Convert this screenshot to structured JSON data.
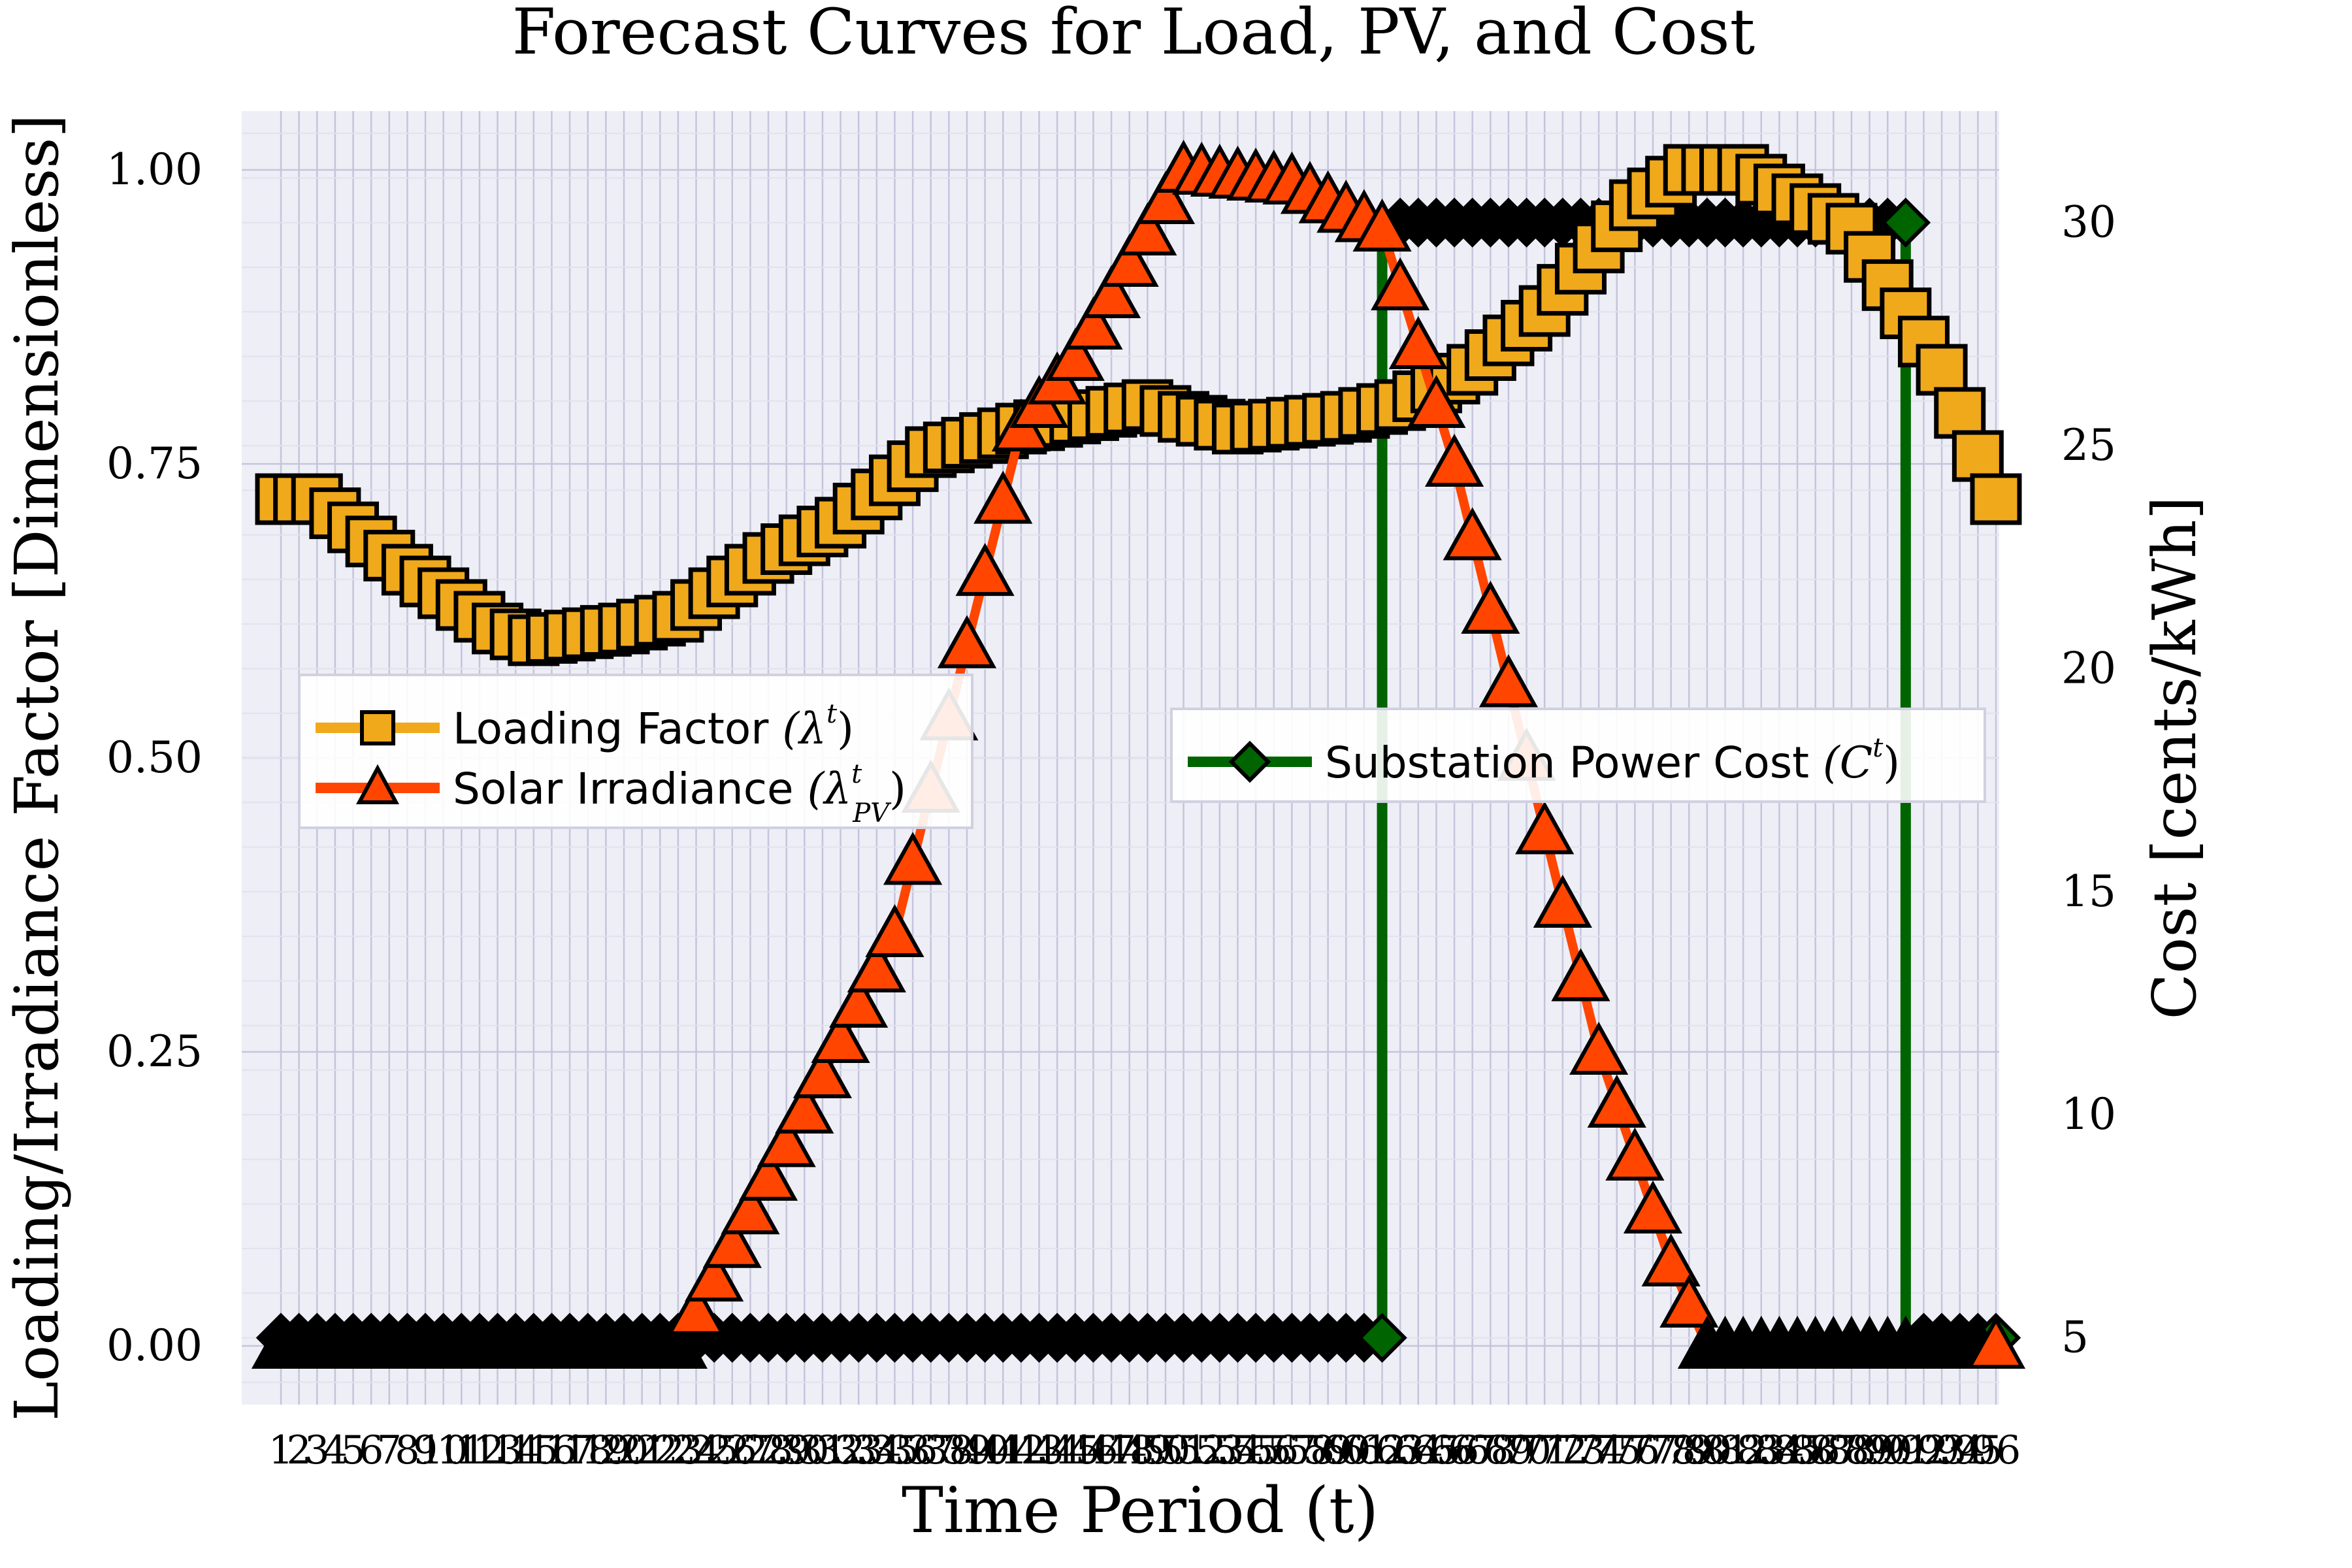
{
  "chart_data": {
    "type": "line",
    "title": "Forecast Curves for Load, PV, and Cost",
    "xlabel": "Time Period (t)",
    "ylabel_left": "Loading/Irradiance Factor [Dimensionless]",
    "ylabel_right": "Cost [cents/kWh]",
    "x_range": [
      1,
      96
    ],
    "ylim_left": [
      -0.05,
      1.05
    ],
    "ylim_right": [
      3.5,
      32.5
    ],
    "yticks_left": [
      0.0,
      0.25,
      0.5,
      0.75,
      1.0
    ],
    "yticks_left_labels": [
      "0.00",
      "0.25",
      "0.50",
      "0.75",
      "1.00"
    ],
    "yticks_right": [
      5,
      10,
      15,
      20,
      25,
      30
    ],
    "yticks_right_labels": [
      "5",
      "10",
      "15",
      "20",
      "25",
      "30"
    ],
    "grid": true,
    "colors": {
      "load": "#F0A91B",
      "pv": "#FF4500",
      "cost": "#006400",
      "plot_bg": "#EEEEF6",
      "grid": "#C4C4DC"
    },
    "legend_left": {
      "placement": "middle-left",
      "entries": [
        {
          "name": "Loading Factor",
          "math": "(λ",
          "sup": "t",
          "close": ")"
        },
        {
          "name": "Solar Irradiance",
          "math": "(λ",
          "sup": "t",
          "sub": "PV",
          "close": ")"
        }
      ]
    },
    "legend_right": {
      "placement": "middle-right",
      "entries": [
        {
          "name": "Substation Power Cost",
          "math": "(C",
          "sup": "t",
          "close": ")"
        }
      ]
    },
    "load_keypoints": [
      [
        1,
        0.72
      ],
      [
        3,
        0.72
      ],
      [
        8,
        0.66
      ],
      [
        13,
        0.61
      ],
      [
        15,
        0.6
      ],
      [
        20,
        0.61
      ],
      [
        23,
        0.62
      ],
      [
        28,
        0.67
      ],
      [
        32,
        0.7
      ],
      [
        37,
        0.76
      ],
      [
        42,
        0.78
      ],
      [
        49,
        0.8
      ],
      [
        51,
        0.79
      ],
      [
        54,
        0.78
      ],
      [
        60,
        0.79
      ],
      [
        63,
        0.8
      ],
      [
        67,
        0.83
      ],
      [
        71,
        0.88
      ],
      [
        76,
        0.97
      ],
      [
        79,
        1.0
      ],
      [
        82,
        1.0
      ],
      [
        88,
        0.95
      ],
      [
        93,
        0.83
      ],
      [
        96,
        0.72
      ]
    ],
    "pv_keypoints": [
      [
        1,
        0.0
      ],
      [
        23,
        0.0
      ],
      [
        30,
        0.2
      ],
      [
        35,
        0.35
      ],
      [
        42,
        0.78
      ],
      [
        45,
        0.84
      ],
      [
        51,
        1.0
      ],
      [
        57,
        0.99
      ],
      [
        62,
        0.95
      ],
      [
        66,
        0.75
      ],
      [
        70,
        0.5
      ],
      [
        74,
        0.25
      ],
      [
        78,
        0.07
      ],
      [
        80,
        0.0
      ],
      [
        96,
        0.0
      ]
    ],
    "cost_keypoints": [
      [
        1,
        5
      ],
      [
        62,
        5
      ],
      [
        62,
        30
      ],
      [
        91,
        30
      ],
      [
        91,
        5
      ],
      [
        96,
        5
      ]
    ]
  }
}
